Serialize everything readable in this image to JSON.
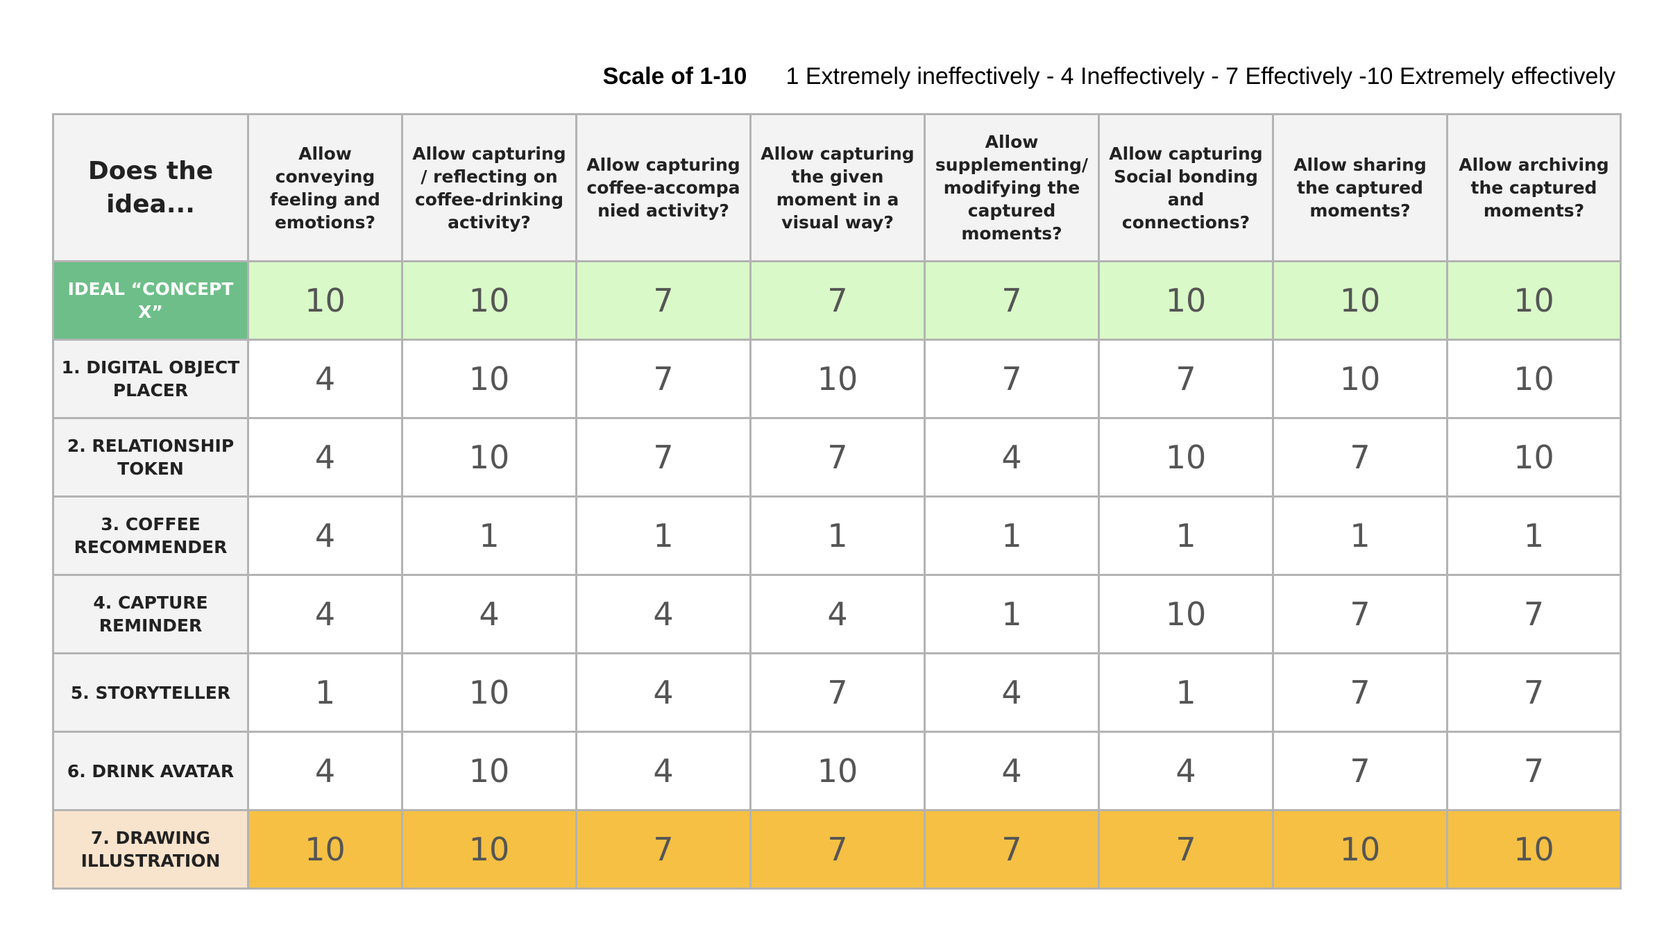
{
  "scale": {
    "title": "Scale of 1-10",
    "legend": "1 Extremely ineffectively - 4 Ineffectively - 7 Effectively -10 Extremely effectively"
  },
  "table": {
    "corner_label": "Does the idea...",
    "columns": [
      "Allow conveying feeling and emotions?",
      "Allow capturing / reflecting on coffee-drinking activity?",
      "Allow capturing coffee-accompa nied activity?",
      "Allow capturing the given moment in a visual way?",
      "Allow supplementing/ modifying the captured moments?",
      "Allow capturing Social bonding and connections?",
      "Allow sharing the captured moments?",
      "Allow archiving the captured moments?"
    ],
    "rows": [
      {
        "label": "IDEAL “CONCEPT X”",
        "scores": [
          "10",
          "10",
          "7",
          "7",
          "7",
          "10",
          "10",
          "10"
        ]
      },
      {
        "label": "1. DIGITAL OBJECT PLACER",
        "scores": [
          "4",
          "10",
          "7",
          "10",
          "7",
          "7",
          "10",
          "10"
        ]
      },
      {
        "label": "2. RELATIONSHIP TOKEN",
        "scores": [
          "4",
          "10",
          "7",
          "7",
          "4",
          "10",
          "7",
          "10"
        ]
      },
      {
        "label": "3. COFFEE RECOMMENDER",
        "scores": [
          "4",
          "1",
          "1",
          "1",
          "1",
          "1",
          "1",
          "1"
        ]
      },
      {
        "label": "4. CAPTURE REMINDER",
        "scores": [
          "4",
          "4",
          "4",
          "4",
          "1",
          "10",
          "7",
          "7"
        ]
      },
      {
        "label": "5. STORYTELLER",
        "scores": [
          "1",
          "10",
          "4",
          "7",
          "4",
          "1",
          "7",
          "7"
        ]
      },
      {
        "label": "6. DRINK AVATAR",
        "scores": [
          "4",
          "10",
          "4",
          "10",
          "4",
          "4",
          "7",
          "7"
        ]
      },
      {
        "label": "7. DRAWING ILLUSTRATION",
        "scores": [
          "10",
          "10",
          "7",
          "7",
          "7",
          "7",
          "10",
          "10"
        ]
      }
    ]
  },
  "colors": {
    "ideal_label_bg": "#6dbe88",
    "ideal_row_bg": "#d9f9c8",
    "highlight_label_bg": "#f8e3cc",
    "highlight_row_bg": "#f5c043",
    "header_bg": "#f3f3f3",
    "border": "#b3b3b3"
  }
}
